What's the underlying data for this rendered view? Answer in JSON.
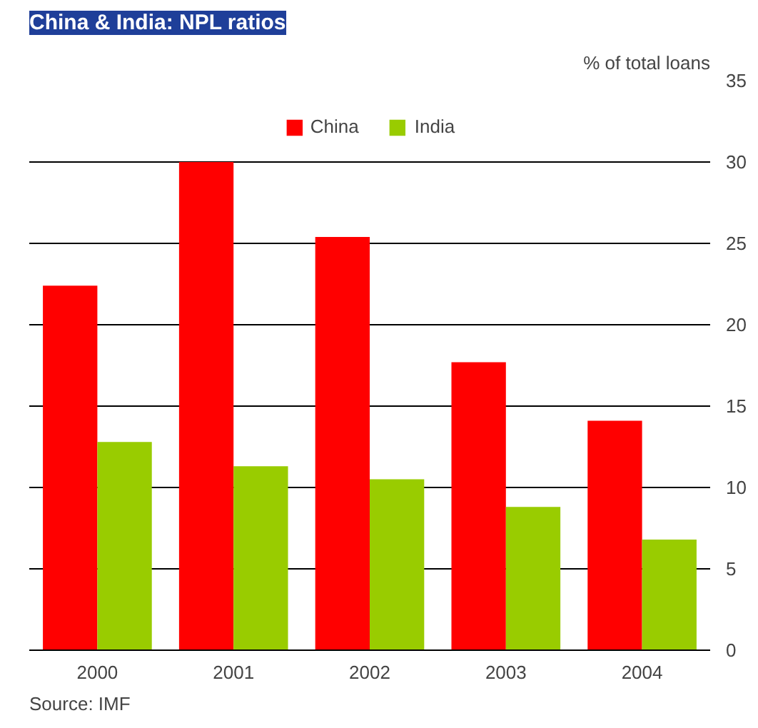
{
  "chart_data": {
    "type": "bar",
    "title": "China & India: NPL ratios",
    "ylabel": "% of total loans",
    "categories": [
      "2000",
      "2001",
      "2002",
      "2003",
      "2004"
    ],
    "series": [
      {
        "name": "China",
        "color": "#ff0000",
        "values": [
          22.4,
          30,
          25.4,
          17.7,
          14.1
        ]
      },
      {
        "name": "India",
        "color": "#99cc00",
        "values": [
          12.8,
          11.3,
          10.5,
          8.8,
          6.8
        ]
      }
    ],
    "ylim": [
      0,
      35
    ],
    "yticks": [
      0,
      5,
      10,
      15,
      20,
      25,
      30,
      35
    ],
    "grid": "y",
    "legend": "top",
    "annotations": [
      "Source: IMF"
    ]
  }
}
